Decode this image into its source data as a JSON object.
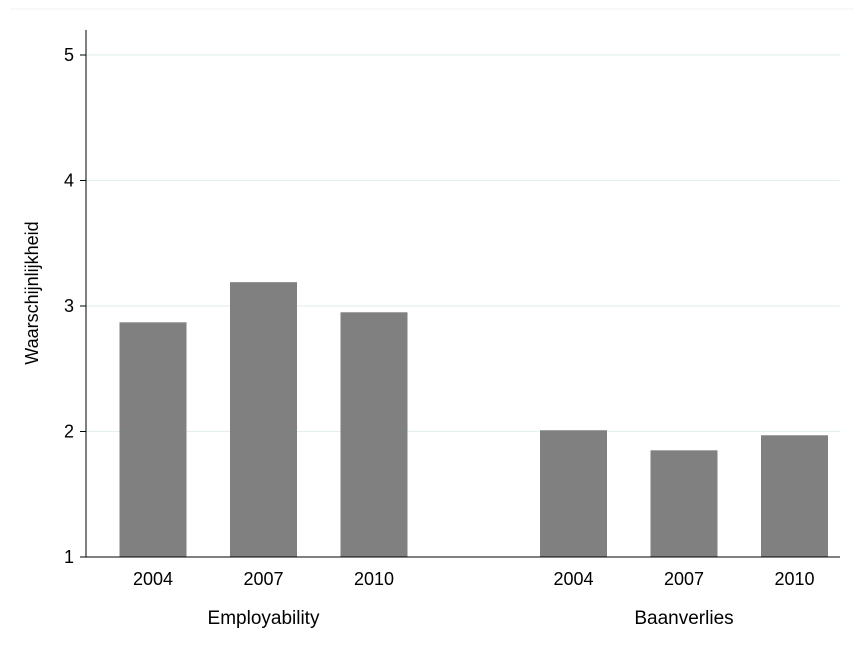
{
  "chart_data": {
    "type": "bar",
    "title": "",
    "ylabel": "Waarschijnlijkheid",
    "xlabel": "",
    "ylim": [
      1,
      5
    ],
    "yticks": [
      1,
      2,
      3,
      4,
      5
    ],
    "ytick_labels": [
      "1",
      "2",
      "3",
      "4",
      "5"
    ],
    "grid": true,
    "legend": "none",
    "bar_color": "#808080",
    "grid_color": "#e3f0f0",
    "groups": [
      {
        "label": "Employability",
        "categories": [
          "2004",
          "2007",
          "2010"
        ],
        "values": [
          2.87,
          3.19,
          2.95
        ]
      },
      {
        "label": "Baanverlies",
        "categories": [
          "2004",
          "2007",
          "2010"
        ],
        "values": [
          2.01,
          1.85,
          1.97
        ]
      }
    ]
  }
}
